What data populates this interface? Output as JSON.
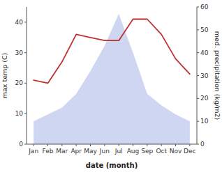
{
  "chart_data": {
    "type": "line",
    "xlabel": "date (month)",
    "ylabel": "max temp (C)",
    "y2label": "med. precipitation (kg/m2)",
    "categories": [
      "Jan",
      "Feb",
      "Mar",
      "Apr",
      "May",
      "Jun",
      "Jul",
      "Aug",
      "Sep",
      "Oct",
      "Nov",
      "Dec"
    ],
    "series": [
      {
        "type": "area",
        "color": "#c5cfee",
        "axis": "y2",
        "values": [
          10,
          13,
          16,
          22,
          32,
          43,
          57,
          40,
          22,
          17,
          13,
          10
        ]
      },
      {
        "type": "line",
        "color": "#c03030",
        "values": [
          21,
          20,
          27,
          36,
          35,
          34,
          34,
          41,
          41,
          36,
          28,
          23
        ]
      }
    ],
    "ylim": [
      0,
      45
    ],
    "yticks": [
      0,
      10,
      20,
      30,
      40
    ],
    "y2lim": [
      0,
      60
    ],
    "y2ticks": [
      0,
      10,
      20,
      30,
      40,
      50,
      60
    ],
    "grid": false
  }
}
